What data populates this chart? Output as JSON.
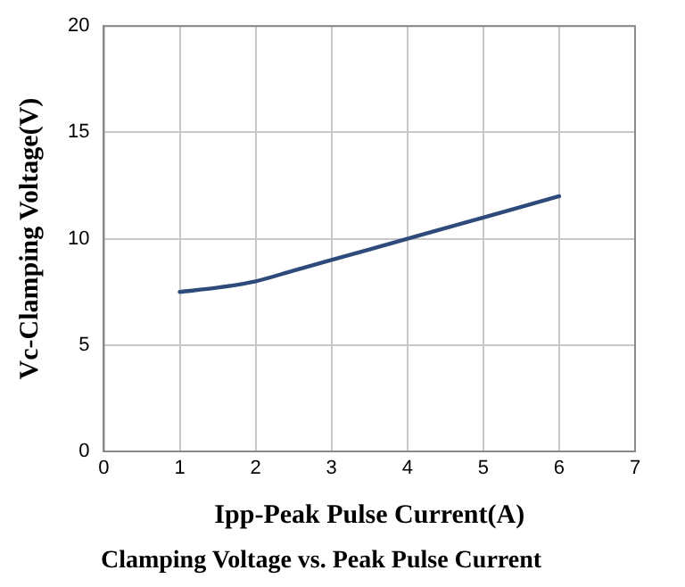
{
  "chart_data": {
    "type": "line",
    "title": "Clamping Voltage vs. Peak Pulse Current",
    "xlabel": "Ipp-Peak Pulse Current(A)",
    "ylabel": "Vc-Clamping Voltage(V)",
    "x": [
      1,
      1.5,
      2,
      2.5,
      3,
      4,
      5,
      6
    ],
    "series": [
      {
        "color": "#2e4a7a",
        "values": [
          7.5,
          7.7,
          8,
          8.5,
          9,
          10,
          11,
          12
        ]
      }
    ],
    "xlim": [
      0,
      7
    ],
    "xticks": [
      0,
      1,
      2,
      3,
      4,
      5,
      6,
      7
    ],
    "ylim": [
      0,
      20
    ],
    "yticks": [
      0,
      5,
      10,
      15,
      20
    ],
    "grid": true,
    "legend": false,
    "marker": "none",
    "line_style": "solid"
  }
}
